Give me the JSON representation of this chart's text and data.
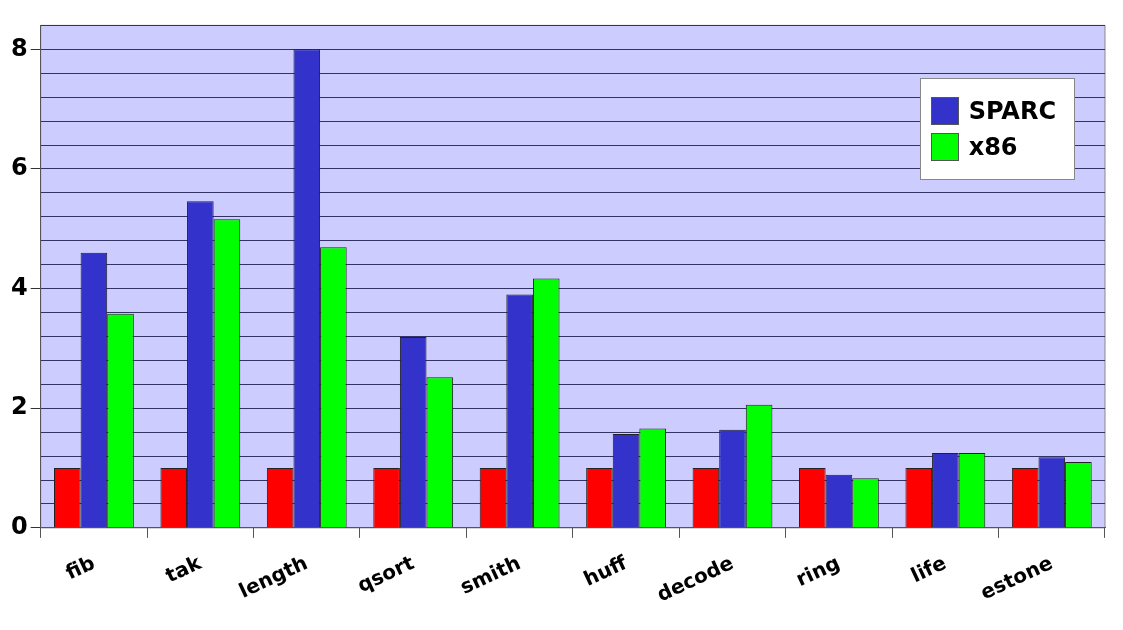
{
  "chart_data": {
    "type": "bar",
    "categories": [
      "fib",
      "tak",
      "length",
      "qsort",
      "smith",
      "huff",
      "decode",
      "ring",
      "life",
      "estone"
    ],
    "series": [
      {
        "color": "#ff0000",
        "values": [
          1,
          1,
          1,
          1,
          1,
          1,
          1,
          1,
          1,
          1
        ]
      },
      {
        "name": "SPARC",
        "color": "#3333cc",
        "values": [
          4.6,
          5.46,
          8.0,
          3.19,
          3.9,
          1.57,
          1.64,
          0.89,
          1.25,
          1.18
        ]
      },
      {
        "name": "x86",
        "color": "#00ff00",
        "values": [
          3.58,
          5.16,
          4.69,
          2.52,
          4.17,
          1.66,
          2.06,
          0.83,
          1.25,
          1.1
        ]
      }
    ],
    "ylim": [
      0,
      8.4
    ],
    "yticks": [
      0,
      {
        "value": 0.4,
        "label": null
      },
      {
        "value": 0.8,
        "label": null
      },
      {
        "value": 1.2,
        "label": null
      },
      {
        "value": 1.6,
        "label": null
      },
      2,
      {
        "value": 2.4,
        "label": null
      },
      {
        "value": 2.8,
        "label": null
      },
      {
        "value": 3.2,
        "label": null
      },
      {
        "value": 3.6,
        "label": null
      },
      4,
      {
        "value": 4.4,
        "label": null
      },
      {
        "value": 4.8,
        "label": null
      },
      {
        "value": 5.2,
        "label": null
      },
      {
        "value": 5.6,
        "label": null
      },
      6,
      {
        "value": 6.4,
        "label": null
      },
      {
        "value": 6.8,
        "label": null
      },
      {
        "value": 7.2,
        "label": null
      },
      {
        "value": 7.6,
        "label": null
      },
      8,
      {
        "value": 8.4,
        "label": null
      }
    ],
    "grid": "y",
    "legend": "top right"
  }
}
